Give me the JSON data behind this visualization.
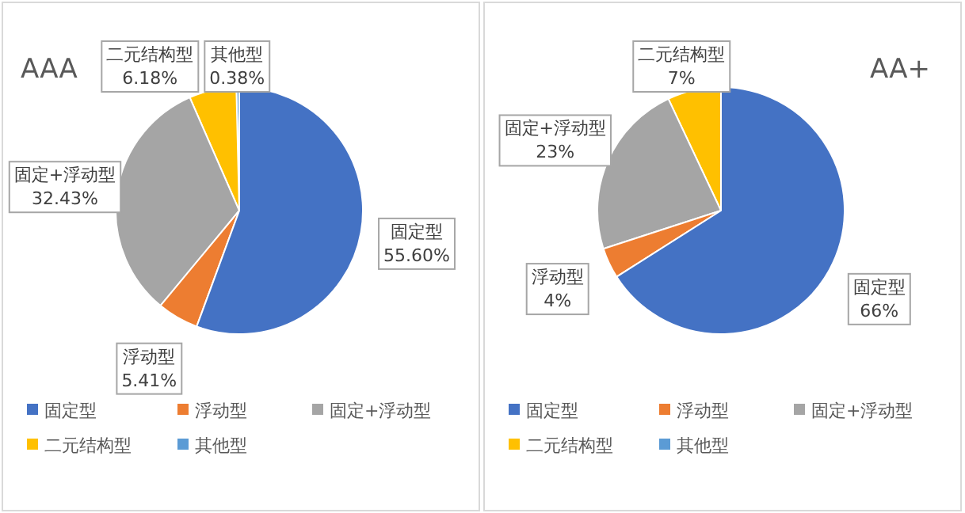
{
  "chart_data": [
    {
      "type": "pie",
      "title": "AAA",
      "categories": [
        "固定型",
        "浮动型",
        "固定+浮动型",
        "二元结构型",
        "其他型"
      ],
      "values": [
        55.6,
        5.41,
        32.43,
        6.18,
        0.38
      ],
      "colors": [
        "#4472c4",
        "#ed7d31",
        "#a5a5a5",
        "#ffc000",
        "#5b9bd5"
      ],
      "value_labels": [
        "55.60%",
        "5.41%",
        "32.43%",
        "6.18%",
        "0.38%"
      ],
      "legend": "bottom"
    },
    {
      "type": "pie",
      "title": "AA+",
      "categories": [
        "固定型",
        "浮动型",
        "固定+浮动型",
        "二元结构型",
        "其他型"
      ],
      "values": [
        66,
        4,
        23,
        7,
        0
      ],
      "colors": [
        "#4472c4",
        "#ed7d31",
        "#a5a5a5",
        "#ffc000",
        "#5b9bd5"
      ],
      "value_labels": [
        "66%",
        "4%",
        "23%",
        "7%",
        null
      ],
      "legend": "bottom"
    }
  ]
}
